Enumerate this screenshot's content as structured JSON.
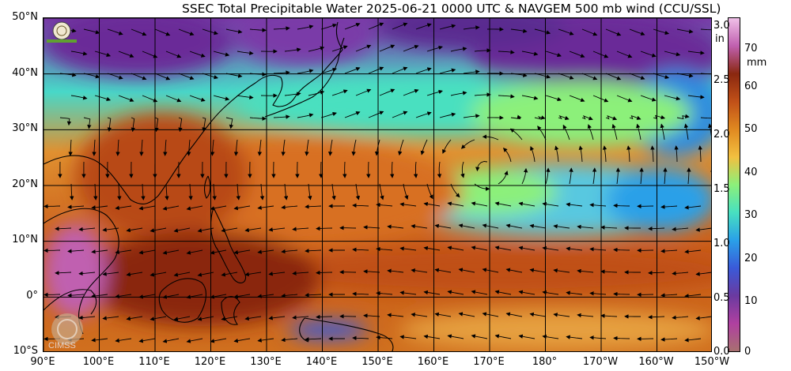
{
  "title": "SSEC Total Precipitable Water  2025-06-21 0000 UTC & NAVGEM 500 mb wind (CCU/SSL)",
  "map": {
    "lat_labels": [
      "50°N",
      "40°N",
      "30°N",
      "20°N",
      "10°N",
      "0°",
      "10°S"
    ],
    "lon_labels": [
      "90°E",
      "100°E",
      "110°E",
      "120°E",
      "130°E",
      "140°E",
      "150°E",
      "160°E",
      "170°E",
      "180°",
      "170°W",
      "160°W",
      "150°W"
    ],
    "lat_range": [
      -10,
      50
    ],
    "lon_range": [
      90,
      210
    ],
    "grid": true
  },
  "colorbar": {
    "in_unit": "in",
    "mm_unit": "mm",
    "in_ticks": [
      "3.0",
      "2.5",
      "2.0",
      "1.5",
      "1.0",
      "0.5",
      "0.0"
    ],
    "mm_ticks": [
      "70",
      "60",
      "50",
      "40",
      "30",
      "20",
      "10",
      "0"
    ],
    "in_range": [
      0,
      3.1
    ],
    "mm_range": [
      0,
      78
    ],
    "colors": [
      "#a87070",
      "#b040a0",
      "#6a3aa0",
      "#3a5ad8",
      "#2aa0e8",
      "#48e0c0",
      "#8cf07a",
      "#f2c040",
      "#e08820",
      "#c05018",
      "#8a2810",
      "#c060b0",
      "#f0c0e8"
    ]
  },
  "logos": {
    "top": "ssec-seal-logo",
    "bottom": "cimss-logo",
    "bottom_text": "CIMSS"
  }
}
